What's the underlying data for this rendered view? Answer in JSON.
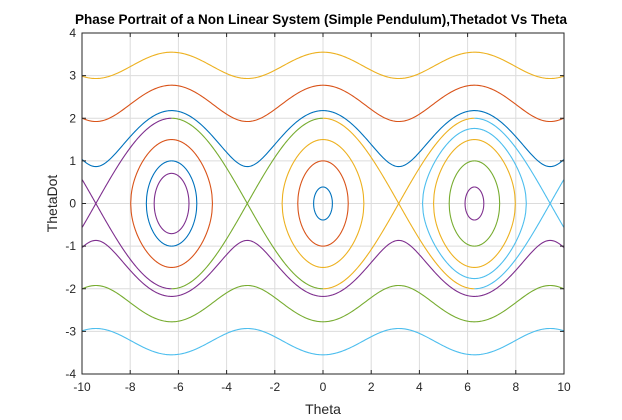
{
  "chart_data": {
    "type": "line",
    "title": "Phase Portrait of a Non Linear System (Simple Pendulum),Thetadot Vs Theta",
    "xlabel": "Theta",
    "ylabel": "ThetaDot",
    "xlim": [
      -10,
      10
    ],
    "ylim": [
      -4,
      4
    ],
    "xticks": [
      "-10",
      "-8",
      "-6",
      "-4",
      "-2",
      "0",
      "2",
      "4",
      "6",
      "8",
      "10"
    ],
    "yticks": [
      "-4",
      "-3",
      "-2",
      "-1",
      "0",
      "1",
      "2",
      "3",
      "4"
    ],
    "grid": true,
    "legend": "none",
    "equation": "thetadot = sign * sqrt(E + 2*cos(theta))",
    "centers": [
      -6.2832,
      0,
      6.2832
    ],
    "closed_orbits": [
      {
        "center": -6.2832,
        "energy": -1.5,
        "color": "#7e2f8e"
      },
      {
        "center": -6.2832,
        "energy": -1.0,
        "color": "#0072bd"
      },
      {
        "center": -6.2832,
        "energy": 0.25,
        "color": "#d95319"
      },
      {
        "center": 0,
        "energy": -1.85,
        "color": "#0072bd"
      },
      {
        "center": 0,
        "energy": -1.0,
        "color": "#d95319"
      },
      {
        "center": 0,
        "energy": 0.25,
        "color": "#edb120"
      },
      {
        "center": 6.2832,
        "energy": -1.85,
        "color": "#7e2f8e"
      },
      {
        "center": 6.2832,
        "energy": -1.0,
        "color": "#77ac30"
      },
      {
        "center": 6.2832,
        "energy": 0.25,
        "color": "#edb120"
      },
      {
        "center": 6.2832,
        "energy": 1.1,
        "color": "#4dbeee"
      }
    ],
    "separatrices": [
      {
        "segment": [
          -12.566,
          -6.2832
        ],
        "color": "#7e2f8e"
      },
      {
        "segment": [
          -6.2832,
          0
        ],
        "color": "#77ac30"
      },
      {
        "segment": [
          0,
          6.2832
        ],
        "color": "#edb120"
      },
      {
        "segment": [
          6.2832,
          12.566
        ],
        "color": "#4dbeee"
      }
    ],
    "running_orbits": [
      {
        "sign": 1,
        "energy": 10.6,
        "color": "#edb120"
      },
      {
        "sign": 1,
        "energy": 5.7,
        "color": "#d95319"
      },
      {
        "sign": 1,
        "energy": 2.75,
        "color": "#0072bd"
      },
      {
        "sign": -1,
        "energy": 2.75,
        "color": "#7e2f8e"
      },
      {
        "sign": -1,
        "energy": 5.7,
        "color": "#77ac30"
      },
      {
        "sign": -1,
        "energy": 10.6,
        "color": "#4dbeee"
      }
    ]
  }
}
